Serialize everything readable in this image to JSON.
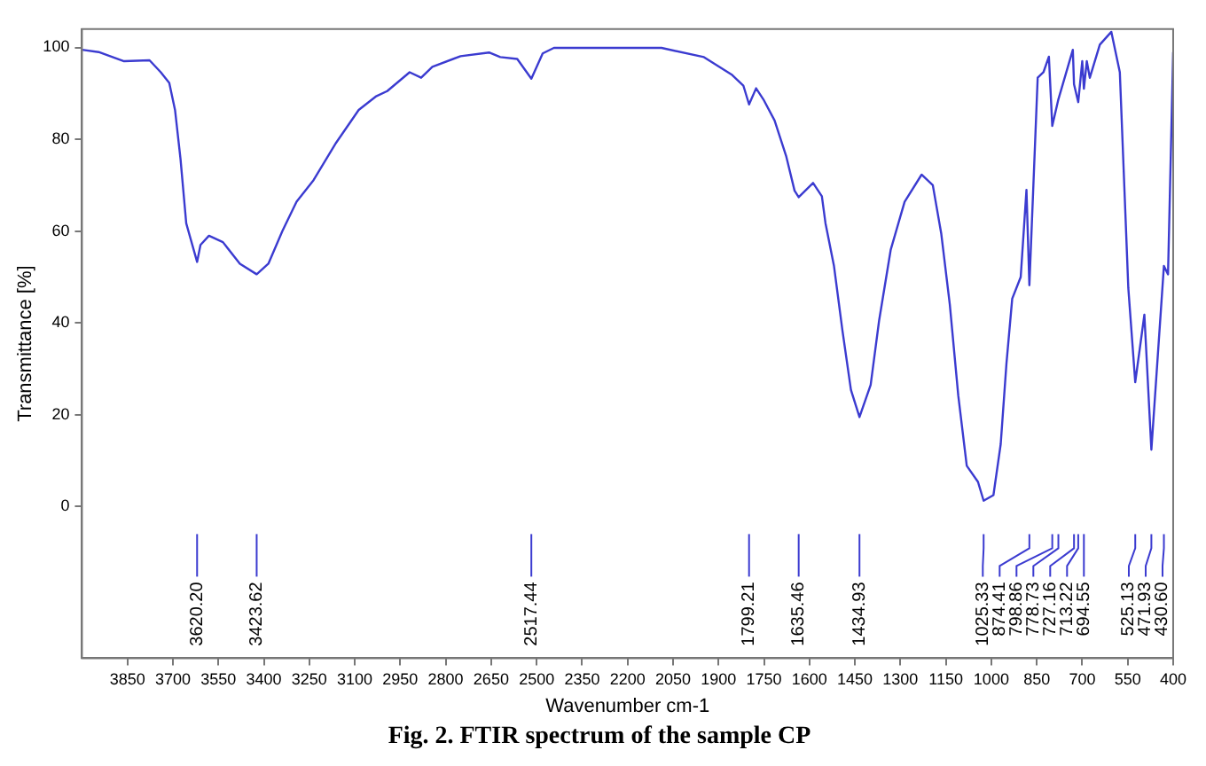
{
  "chart_data": {
    "type": "line",
    "title": "Fig. 2. FTIR spectrum of the sample CP",
    "xlabel": "Wavenumber cm-1",
    "ylabel": "Transmittance [%]",
    "xlim": [
      4000,
      400
    ],
    "ylim": [
      -33,
      104
    ],
    "xticks": [
      3850,
      3700,
      3550,
      3400,
      3250,
      3100,
      2950,
      2800,
      2650,
      2500,
      2350,
      2200,
      2050,
      1900,
      1750,
      1600,
      1450,
      1300,
      1150,
      1000,
      850,
      700,
      550,
      400
    ],
    "yticks": [
      0,
      20,
      40,
      60,
      80,
      100
    ],
    "grid": false,
    "legend": false,
    "marker": "none",
    "line_style": "solid",
    "series": [
      {
        "color": "#3b3bd0",
        "x": [
          4000,
          3945,
          3861,
          3777,
          3740,
          3712,
          3693,
          3675,
          3656,
          3620.2,
          3609,
          3581,
          3535,
          3479,
          3423.62,
          3385,
          3339,
          3292,
          3236,
          3161,
          3087,
          3031,
          2993,
          2919,
          2881,
          2844,
          2751,
          2657,
          2620,
          2564,
          2517.44,
          2480,
          2443,
          2321,
          2088,
          1948,
          1855,
          1818,
          1799.21,
          1776,
          1752,
          1715,
          1677,
          1649,
          1635.46,
          1588,
          1559,
          1547,
          1519,
          1491,
          1463,
          1434.93,
          1398,
          1370,
          1332,
          1286,
          1230,
          1193,
          1165,
          1137,
          1109,
          1081,
          1044,
          1025.33,
          993,
          969,
          950,
          931,
          903,
          884,
          874.41,
          847,
          828,
          810,
          798.86,
          778.73,
          731,
          727.16,
          713.22,
          700,
          694.55,
          685,
          675,
          642,
          604,
          576,
          548,
          525.13,
          495,
          471.93,
          430.6,
          417,
          400
        ],
        "values": [
          99.5,
          99.0,
          97.0,
          97.2,
          94.6,
          92.3,
          86.4,
          75.8,
          61.7,
          53.3,
          57.0,
          59.0,
          57.6,
          52.9,
          50.6,
          52.9,
          60.0,
          66.4,
          71.1,
          79.3,
          86.4,
          89.3,
          90.5,
          94.6,
          93.4,
          95.8,
          98.1,
          98.9,
          97.9,
          97.5,
          93.2,
          98.7,
          99.9,
          99.9,
          99.9,
          97.9,
          94.0,
          91.7,
          87.6,
          91.1,
          88.7,
          84.1,
          76.4,
          68.8,
          67.4,
          70.5,
          67.6,
          61.7,
          52.4,
          38.3,
          25.4,
          19.5,
          26.5,
          40.6,
          55.9,
          66.4,
          72.3,
          70.0,
          59.4,
          44.1,
          24.2,
          8.9,
          5.4,
          1.3,
          2.5,
          13.6,
          31.2,
          45.3,
          50.0,
          69.0,
          48.2,
          93.4,
          94.6,
          98.0,
          82.9,
          88.7,
          99.5,
          92,
          88.1,
          97,
          91,
          97,
          93.4,
          100.6,
          103.4,
          94.6,
          47.6,
          27.1,
          41.8,
          12.4,
          52.4,
          50.6,
          99
        ]
      }
    ],
    "annotations": [
      "3620.20",
      "3423.62",
      "2517.44",
      "1799.21",
      "1635.46",
      "1434.93",
      "1025.33",
      "874.41",
      "798.86",
      "778.73",
      "727.16",
      "713.22",
      "694.55",
      "525.13",
      "471.93",
      "430.60"
    ]
  }
}
